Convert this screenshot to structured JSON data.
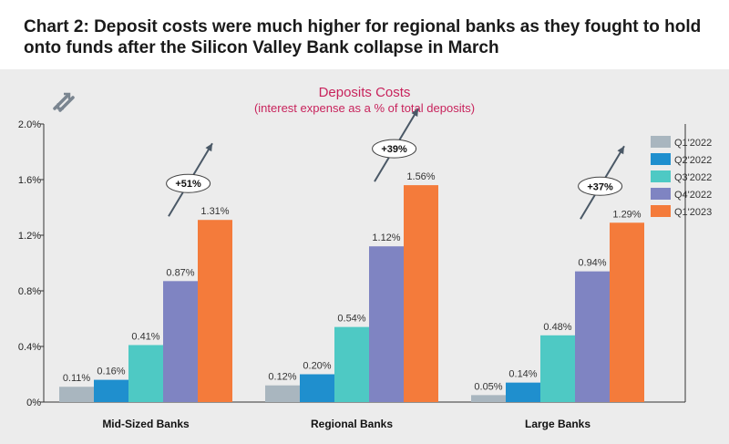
{
  "headline": "Chart 2: Deposit costs were much higher for regional banks as they fought to hold onto funds after the Silicon Valley Bank collapse in March",
  "logo_icon": "double-arrow-logo-icon",
  "colors": {
    "panel_bg": "#ececec",
    "title": "#c8235c",
    "Q1'2022": "#a9b6bf",
    "Q2'2022": "#1f8fce",
    "Q3'2022": "#4ec9c4",
    "Q4'2022": "#7f84c2",
    "Q1'2023": "#f47b3b",
    "annotation_arrow": "#4a5866"
  },
  "chart_data": {
    "type": "bar",
    "title": "Deposits Costs",
    "subtitle": "(interest expense as a % of total deposits)",
    "xlabel": "",
    "ylabel": "",
    "ylim": [
      0,
      2.0
    ],
    "yticks": [
      0,
      0.4,
      0.8,
      1.2,
      1.6,
      2.0
    ],
    "ytick_labels": [
      "0%",
      "0.4%",
      "0.8%",
      "1.2%",
      "1.6%",
      "2.0%"
    ],
    "grid": false,
    "legend_position": "top-right",
    "categories": [
      "Mid-Sized Banks",
      "Regional Banks",
      "Large Banks"
    ],
    "series": [
      {
        "name": "Q1'2022",
        "values": [
          0.11,
          0.12,
          0.05
        ],
        "labels": [
          "0.11%",
          "0.12%",
          "0.05%"
        ]
      },
      {
        "name": "Q2'2022",
        "values": [
          0.16,
          0.2,
          0.14
        ],
        "labels": [
          "0.16%",
          "0.20%",
          "0.14%"
        ]
      },
      {
        "name": "Q3'2022",
        "values": [
          0.41,
          0.54,
          0.48
        ],
        "labels": [
          "0.41%",
          "0.54%",
          "0.48%"
        ]
      },
      {
        "name": "Q4'2022",
        "values": [
          0.87,
          1.12,
          0.94
        ],
        "labels": [
          "0.87%",
          "1.12%",
          "0.94%"
        ]
      },
      {
        "name": "Q1'2023",
        "values": [
          1.31,
          1.56,
          1.29
        ],
        "labels": [
          "1.31%",
          "1.56%",
          "1.29%"
        ]
      }
    ],
    "annotations": [
      "+51%",
      "+39%",
      "+37%"
    ]
  }
}
